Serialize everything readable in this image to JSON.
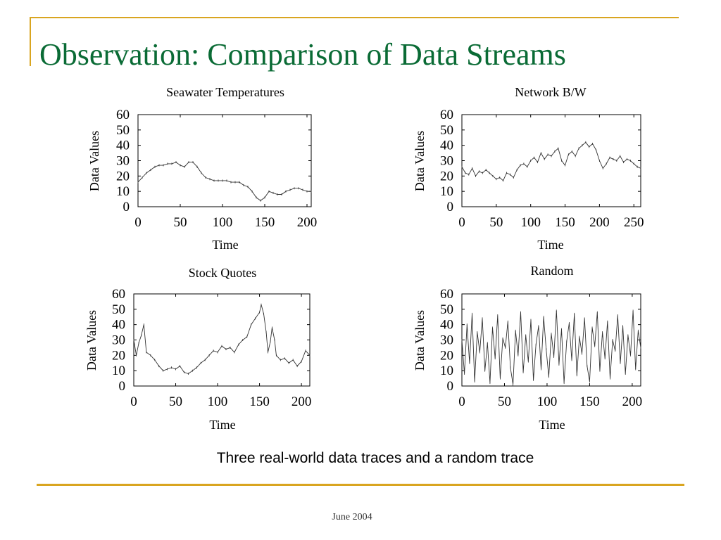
{
  "slide": {
    "title": "Observation: Comparison of Data Streams",
    "caption": "Three real-world data traces and a random trace",
    "footer": "June 2004"
  },
  "colors": {
    "title": "#0a6b35",
    "accent_rule": "#d9a520",
    "trace": "#333333"
  },
  "chart_data": [
    {
      "type": "line",
      "title": "Seawater Temperatures",
      "xlabel": "Time",
      "ylabel": "Data Values",
      "xlim": [
        0,
        205
      ],
      "ylim": [
        0,
        60
      ],
      "xticks": [
        0,
        50,
        100,
        150,
        200
      ],
      "yticks": [
        0,
        10,
        20,
        30,
        40,
        50,
        60
      ],
      "grid": false,
      "series": [
        {
          "x": [
            0,
            5,
            10,
            15,
            20,
            25,
            30,
            35,
            40,
            45,
            50,
            55,
            60,
            65,
            70,
            75,
            80,
            85,
            90,
            95,
            100,
            105,
            110,
            115,
            120,
            125,
            130,
            135,
            140,
            145,
            150,
            155,
            160,
            165,
            170,
            175,
            180,
            185,
            190,
            195,
            200,
            205
          ],
          "values": [
            16,
            19,
            22,
            24,
            26,
            27,
            27,
            28,
            28,
            29,
            27,
            26,
            29,
            29,
            26,
            22,
            19,
            18,
            17,
            17,
            17,
            17,
            16,
            16,
            16,
            14,
            13,
            10,
            6,
            4,
            6,
            10,
            9,
            8,
            8,
            10,
            11,
            12,
            12,
            11,
            10,
            10
          ]
        }
      ]
    },
    {
      "type": "line",
      "title": "Network B/W",
      "xlabel": "Time",
      "ylabel": "Data Values",
      "xlim": [
        0,
        260
      ],
      "ylim": [
        0,
        60
      ],
      "xticks": [
        0,
        50,
        100,
        150,
        200,
        250
      ],
      "yticks": [
        0,
        10,
        20,
        30,
        40,
        50,
        60
      ],
      "grid": false,
      "series": [
        {
          "x": [
            0,
            5,
            10,
            15,
            20,
            25,
            30,
            35,
            40,
            45,
            50,
            55,
            60,
            65,
            70,
            75,
            80,
            85,
            90,
            95,
            100,
            105,
            110,
            115,
            120,
            125,
            130,
            135,
            140,
            145,
            150,
            155,
            160,
            165,
            170,
            175,
            180,
            185,
            190,
            195,
            200,
            205,
            210,
            215,
            220,
            225,
            230,
            235,
            240,
            245,
            250,
            255,
            260
          ],
          "values": [
            26,
            22,
            21,
            25,
            20,
            23,
            22,
            24,
            22,
            20,
            18,
            19,
            17,
            22,
            21,
            19,
            24,
            27,
            28,
            26,
            30,
            32,
            29,
            35,
            31,
            34,
            33,
            36,
            38,
            30,
            27,
            34,
            36,
            33,
            38,
            40,
            42,
            39,
            41,
            37,
            30,
            25,
            28,
            32,
            31,
            30,
            33,
            29,
            31,
            30,
            28,
            26,
            25
          ]
        }
      ]
    },
    {
      "type": "line",
      "title": "Stock Quotes",
      "xlabel": "Time",
      "ylabel": "Data Values",
      "xlim": [
        0,
        210
      ],
      "ylim": [
        0,
        60
      ],
      "xticks": [
        0,
        50,
        100,
        150,
        200
      ],
      "yticks": [
        0,
        10,
        20,
        30,
        40,
        50,
        60
      ],
      "grid": false,
      "series": [
        {
          "x": [
            0,
            3,
            6,
            9,
            12,
            15,
            20,
            25,
            30,
            35,
            40,
            45,
            50,
            55,
            60,
            65,
            70,
            75,
            80,
            85,
            90,
            95,
            100,
            105,
            110,
            115,
            120,
            125,
            130,
            135,
            140,
            145,
            150,
            152,
            155,
            158,
            160,
            163,
            165,
            168,
            170,
            175,
            180,
            185,
            190,
            195,
            200,
            205,
            210
          ],
          "values": [
            30,
            20,
            28,
            33,
            40,
            22,
            20,
            17,
            13,
            10,
            11,
            12,
            11,
            13,
            9,
            8,
            10,
            12,
            15,
            17,
            20,
            23,
            22,
            26,
            24,
            25,
            22,
            27,
            30,
            32,
            40,
            44,
            48,
            53,
            47,
            35,
            22,
            29,
            38,
            30,
            20,
            17,
            18,
            15,
            17,
            13,
            16,
            23,
            20
          ]
        }
      ]
    },
    {
      "type": "line",
      "title": "Random",
      "xlabel": "Time",
      "ylabel": "Data Values",
      "xlim": [
        0,
        210
      ],
      "ylim": [
        0,
        60
      ],
      "xticks": [
        0,
        50,
        100,
        150,
        200
      ],
      "yticks": [
        0,
        10,
        20,
        30,
        40,
        50,
        60
      ],
      "grid": false,
      "series": [
        {
          "x": [
            0,
            3,
            6,
            9,
            12,
            15,
            18,
            21,
            24,
            27,
            30,
            33,
            36,
            39,
            42,
            45,
            48,
            51,
            54,
            57,
            60,
            63,
            66,
            69,
            72,
            75,
            78,
            81,
            84,
            87,
            90,
            93,
            96,
            99,
            102,
            105,
            108,
            111,
            114,
            117,
            120,
            123,
            126,
            129,
            132,
            135,
            138,
            141,
            144,
            147,
            150,
            153,
            156,
            159,
            162,
            165,
            168,
            171,
            174,
            177,
            180,
            183,
            186,
            189,
            192,
            195,
            198,
            201,
            204,
            207,
            210
          ],
          "values": [
            30,
            8,
            40,
            15,
            47,
            3,
            35,
            22,
            44,
            10,
            28,
            2,
            38,
            18,
            46,
            5,
            31,
            25,
            42,
            12,
            1,
            36,
            20,
            48,
            9,
            33,
            16,
            43,
            4,
            27,
            39,
            11,
            45,
            24,
            6,
            34,
            19,
            49,
            14,
            37,
            2,
            29,
            41,
            17,
            47,
            7,
            32,
            21,
            44,
            13,
            3,
            38,
            26,
            48,
            10,
            35,
            18,
            42,
            5,
            30,
            23,
            46,
            15,
            39,
            8,
            33,
            20,
            49,
            11,
            36,
            25
          ]
        }
      ]
    }
  ]
}
